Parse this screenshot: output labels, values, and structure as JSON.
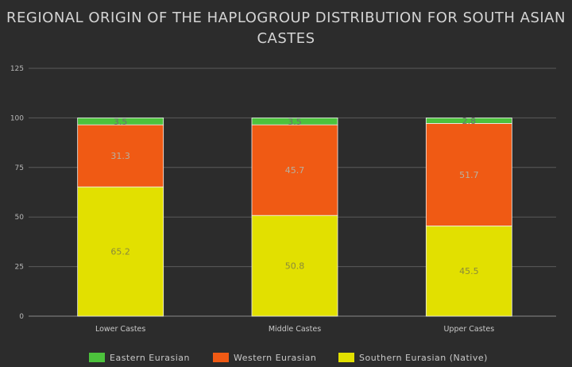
{
  "chart_data": {
    "type": "bar",
    "stacked": true,
    "title_lines": [
      "REGIONAL ORIGIN OF THE HAPLOGROUP DISTRIBUTION FOR SOUTH ASIAN",
      "CASTES"
    ],
    "categories": [
      "Lower Castes",
      "Middle Castes",
      "Upper Castes"
    ],
    "series": [
      {
        "name": "Southern Eurasian (Native)",
        "values": [
          65.2,
          50.8,
          45.5
        ],
        "color": "#e2e000"
      },
      {
        "name": "Western Eurasian",
        "values": [
          31.3,
          45.7,
          51.7
        ],
        "color": "#f05a14"
      },
      {
        "name": "Eastern Eurasian",
        "values": [
          3.5,
          3.5,
          2.8
        ],
        "color": "#4cc23c"
      }
    ],
    "legend_order": [
      "Eastern Eurasian",
      "Western Eurasian",
      "Southern Eurasian (Native)"
    ],
    "ylim": [
      0,
      125
    ],
    "yticks": [
      0,
      25,
      50,
      75,
      100,
      125
    ],
    "grid": true,
    "legend_position": "bottom"
  }
}
